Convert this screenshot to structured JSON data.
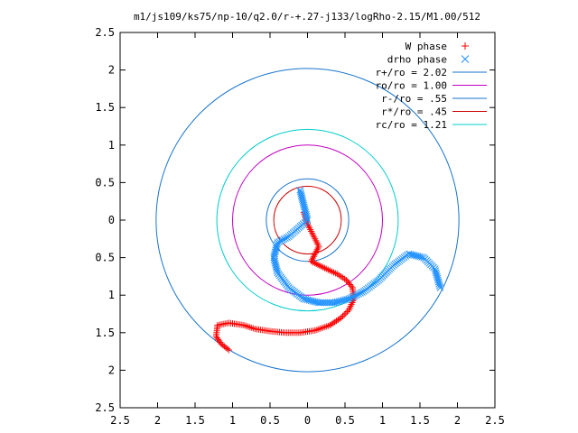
{
  "chart_data": {
    "type": "scatter",
    "title": "m1/js109/ks75/np-10/q2.0/r-+.27-j133/logRho-2.15/M1.00/512",
    "xlabel": "",
    "ylabel": "",
    "xlim": [
      -2.5,
      2.5
    ],
    "ylim": [
      -2.5,
      2.5
    ],
    "grid": false,
    "legend_position": "top-right",
    "x_ticks": [
      -2.5,
      -2,
      -1.5,
      -1,
      -0.5,
      0,
      0.5,
      1,
      1.5,
      2,
      2.5
    ],
    "y_ticks": [
      -2.5,
      -2,
      -1.5,
      -1,
      -0.5,
      0,
      0.5,
      1,
      1.5,
      2,
      2.5
    ],
    "x_tick_labels": [
      "2.5",
      "2",
      "1.5",
      "1",
      "0.5",
      "0",
      "0.5",
      "1",
      "1.5",
      "2",
      "2.5"
    ],
    "y_tick_labels": [
      "2.5",
      "2",
      "1.5",
      "1",
      "0.5",
      "0",
      "0.5",
      "1",
      "1.5",
      "2",
      "2.5"
    ],
    "series": [
      {
        "name": "W phase",
        "kind": "points",
        "marker": "plus",
        "color": "#ff0000",
        "x": [
          -0.05,
          0,
          0.05,
          0.1,
          0.15,
          0.05,
          0.25,
          0.4,
          0.52,
          0.6,
          0.62,
          0.55,
          0.45,
          0.3,
          0.1,
          -0.1,
          -0.3,
          -0.5,
          -0.7,
          -0.85,
          -1.05,
          -1.2,
          -1.22,
          -1.15,
          -1.05
        ],
        "y": [
          0.1,
          -0.05,
          -0.15,
          -0.25,
          -0.35,
          -0.55,
          -0.65,
          -0.72,
          -0.8,
          -0.9,
          -1.05,
          -1.2,
          -1.3,
          -1.4,
          -1.47,
          -1.5,
          -1.5,
          -1.48,
          -1.45,
          -1.4,
          -1.37,
          -1.4,
          -1.55,
          -1.65,
          -1.73
        ]
      },
      {
        "name": "drho phase",
        "kind": "points",
        "marker": "cross",
        "color": "#1e90ff",
        "x": [
          -0.1,
          -0.05,
          0,
          -0.25,
          -0.4,
          -0.45,
          -0.4,
          -0.25,
          -0.05,
          0.15,
          0.35,
          0.55,
          0.75,
          0.95,
          1.15,
          1.35,
          1.55,
          1.7,
          1.77
        ],
        "y": [
          0.4,
          0.2,
          0,
          -0.22,
          -0.3,
          -0.5,
          -0.7,
          -0.9,
          -1.05,
          -1.1,
          -1.1,
          -1.05,
          -0.95,
          -0.8,
          -0.6,
          -0.45,
          -0.5,
          -0.65,
          -0.9
        ]
      },
      {
        "name": "r+/ro = 2.02",
        "kind": "circle",
        "radius": 2.02,
        "color": "#1874cd"
      },
      {
        "name": "ro/ro = 1.00",
        "kind": "circle",
        "radius": 1.0,
        "color": "#c000c0"
      },
      {
        "name": "r-/ro = .55",
        "kind": "circle",
        "radius": 0.55,
        "color": "#1874cd"
      },
      {
        "name": "r*/ro = .45",
        "kind": "circle",
        "radius": 0.45,
        "color": "#cc0000"
      },
      {
        "name": "rc/ro = 1.21",
        "kind": "circle",
        "radius": 1.21,
        "color": "#00cccc"
      }
    ]
  }
}
